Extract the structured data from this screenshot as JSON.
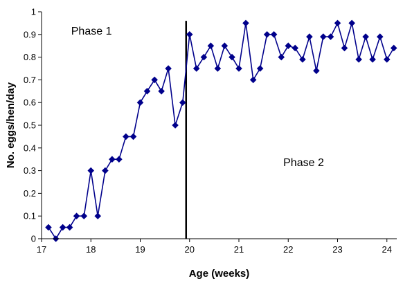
{
  "chart_data": {
    "type": "line",
    "title": "",
    "xlabel": "Age (weeks)",
    "ylabel": "No. eggs/hen/day",
    "xlim": [
      17,
      24.2
    ],
    "ylim": [
      0,
      1
    ],
    "x_ticks": [
      "17",
      "18",
      "19",
      "20",
      "21",
      "22",
      "23",
      "24"
    ],
    "y_ticks": [
      "0",
      "0.1",
      "0.2",
      "0.3",
      "0.4",
      "0.5",
      "0.6",
      "0.7",
      "0.8",
      "0.9",
      "1"
    ],
    "grid": false,
    "legend": "none",
    "series_color": "#00008b",
    "divider": {
      "x": 19.93,
      "color": "#000000"
    },
    "annotations": [
      {
        "text": "Phase 1",
        "x": 17.6,
        "y": 0.9
      },
      {
        "text": "Phase 2",
        "x": 21.9,
        "y": 0.32
      }
    ],
    "series": [
      {
        "x": [
          17.14,
          17.29,
          17.43,
          17.57,
          17.71,
          17.86,
          18.0,
          18.14,
          18.29,
          18.43,
          18.57,
          18.71,
          18.86,
          19.0,
          19.14,
          19.29,
          19.43,
          19.57,
          19.71,
          19.86,
          20.0,
          20.14,
          20.29,
          20.43,
          20.57,
          20.71,
          20.86,
          21.0,
          21.14,
          21.29,
          21.43,
          21.57,
          21.71,
          21.86,
          22.0,
          22.14,
          22.29,
          22.43,
          22.57,
          22.71,
          22.86,
          23.0,
          23.14,
          23.29,
          23.43,
          23.57,
          23.71,
          23.86,
          24.0,
          24.14
        ],
        "y": [
          0.05,
          0.0,
          0.05,
          0.05,
          0.1,
          0.1,
          0.3,
          0.1,
          0.3,
          0.35,
          0.35,
          0.45,
          0.45,
          0.6,
          0.65,
          0.7,
          0.65,
          0.75,
          0.5,
          0.6,
          0.9,
          0.75,
          0.8,
          0.85,
          0.75,
          0.85,
          0.8,
          0.75,
          0.95,
          0.7,
          0.75,
          0.9,
          0.9,
          0.8,
          0.85,
          0.84,
          0.79,
          0.89,
          0.74,
          0.89,
          0.89,
          0.95,
          0.84,
          0.95,
          0.79,
          0.89,
          0.79,
          0.89,
          0.79,
          0.84
        ]
      }
    ]
  }
}
